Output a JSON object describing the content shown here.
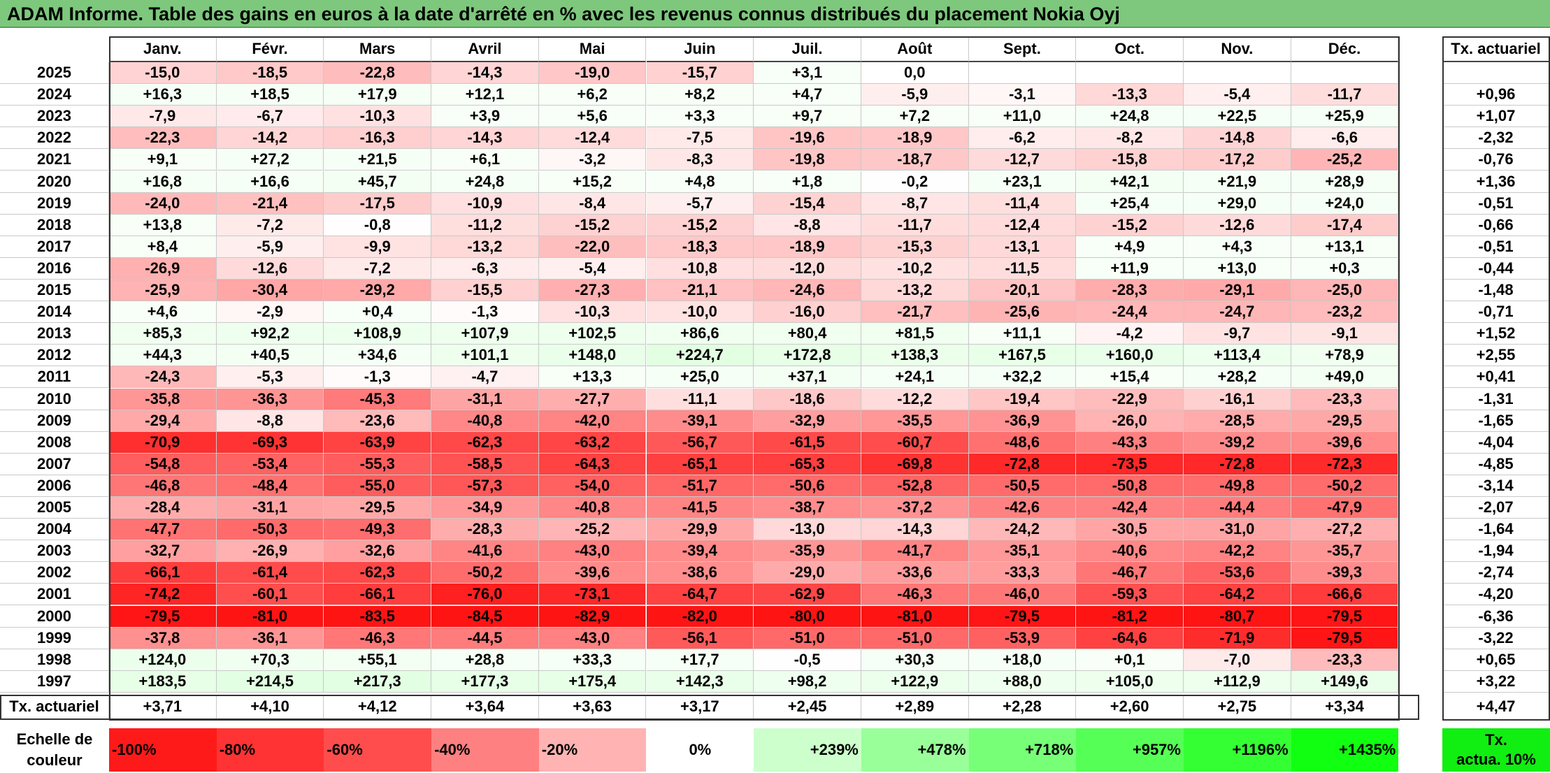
{
  "title": "ADAM Informe. Table des gains en euros à la date d'arrêté en % avec les revenus connus distribués du placement Nokia Oyj",
  "months": [
    "Janv.",
    "Févr.",
    "Mars",
    "Avril",
    "Mai",
    "Juin",
    "Juil.",
    "Août",
    "Sept.",
    "Oct.",
    "Nov.",
    "Déc."
  ],
  "rate_header": "Tx. actuariel",
  "rows": [
    {
      "year": "2025",
      "values": [
        "-15,0",
        "-18,5",
        "-22,8",
        "-14,3",
        "-19,0",
        "-15,7",
        "+3,1",
        "0,0",
        "",
        "",
        "",
        ""
      ],
      "rate": ""
    },
    {
      "year": "2024",
      "values": [
        "+16,3",
        "+18,5",
        "+17,9",
        "+12,1",
        "+6,2",
        "+8,2",
        "+4,7",
        "-5,9",
        "-3,1",
        "-13,3",
        "-5,4",
        "-11,7"
      ],
      "rate": "+0,96"
    },
    {
      "year": "2023",
      "values": [
        "-7,9",
        "-6,7",
        "-10,3",
        "+3,9",
        "+5,6",
        "+3,3",
        "+9,7",
        "+7,2",
        "+11,0",
        "+24,8",
        "+22,5",
        "+25,9"
      ],
      "rate": "+1,07"
    },
    {
      "year": "2022",
      "values": [
        "-22,3",
        "-14,2",
        "-16,3",
        "-14,3",
        "-12,4",
        "-7,5",
        "-19,6",
        "-18,9",
        "-6,2",
        "-8,2",
        "-14,8",
        "-6,6"
      ],
      "rate": "-2,32"
    },
    {
      "year": "2021",
      "values": [
        "+9,1",
        "+27,2",
        "+21,5",
        "+6,1",
        "-3,2",
        "-8,3",
        "-19,8",
        "-18,7",
        "-12,7",
        "-15,8",
        "-17,2",
        "-25,2"
      ],
      "rate": "-0,76"
    },
    {
      "year": "2020",
      "values": [
        "+16,8",
        "+16,6",
        "+45,7",
        "+24,8",
        "+15,2",
        "+4,8",
        "+1,8",
        "-0,2",
        "+23,1",
        "+42,1",
        "+21,9",
        "+28,9"
      ],
      "rate": "+1,36"
    },
    {
      "year": "2019",
      "values": [
        "-24,0",
        "-21,4",
        "-17,5",
        "-10,9",
        "-8,4",
        "-5,7",
        "-15,4",
        "-8,7",
        "-11,4",
        "+25,4",
        "+29,0",
        "+24,0"
      ],
      "rate": "-0,51"
    },
    {
      "year": "2018",
      "values": [
        "+13,8",
        "-7,2",
        "-0,8",
        "-11,2",
        "-15,2",
        "-15,2",
        "-8,8",
        "-11,7",
        "-12,4",
        "-15,2",
        "-12,6",
        "-17,4"
      ],
      "rate": "-0,66"
    },
    {
      "year": "2017",
      "values": [
        "+8,4",
        "-5,9",
        "-9,9",
        "-13,2",
        "-22,0",
        "-18,3",
        "-18,9",
        "-15,3",
        "-13,1",
        "+4,9",
        "+4,3",
        "+13,1"
      ],
      "rate": "-0,51"
    },
    {
      "year": "2016",
      "values": [
        "-26,9",
        "-12,6",
        "-7,2",
        "-6,3",
        "-5,4",
        "-10,8",
        "-12,0",
        "-10,2",
        "-11,5",
        "+11,9",
        "+13,0",
        "+0,3"
      ],
      "rate": "-0,44"
    },
    {
      "year": "2015",
      "values": [
        "-25,9",
        "-30,4",
        "-29,2",
        "-15,5",
        "-27,3",
        "-21,1",
        "-24,6",
        "-13,2",
        "-20,1",
        "-28,3",
        "-29,1",
        "-25,0"
      ],
      "rate": "-1,48"
    },
    {
      "year": "2014",
      "values": [
        "+4,6",
        "-2,9",
        "+0,4",
        "-1,3",
        "-10,3",
        "-10,0",
        "-16,0",
        "-21,7",
        "-25,6",
        "-24,4",
        "-24,7",
        "-23,2"
      ],
      "rate": "-0,71"
    },
    {
      "year": "2013",
      "values": [
        "+85,3",
        "+92,2",
        "+108,9",
        "+107,9",
        "+102,5",
        "+86,6",
        "+80,4",
        "+81,5",
        "+11,1",
        "-4,2",
        "-9,7",
        "-9,1"
      ],
      "rate": "+1,52"
    },
    {
      "year": "2012",
      "values": [
        "+44,3",
        "+40,5",
        "+34,6",
        "+101,1",
        "+148,0",
        "+224,7",
        "+172,8",
        "+138,3",
        "+167,5",
        "+160,0",
        "+113,4",
        "+78,9"
      ],
      "rate": "+2,55"
    },
    {
      "year": "2011",
      "values": [
        "-24,3",
        "-5,3",
        "-1,3",
        "-4,7",
        "+13,3",
        "+25,0",
        "+37,1",
        "+24,1",
        "+32,2",
        "+15,4",
        "+28,2",
        "+49,0"
      ],
      "rate": "+0,41"
    },
    {
      "year": "2010",
      "values": [
        "-35,8",
        "-36,3",
        "-45,3",
        "-31,1",
        "-27,7",
        "-11,1",
        "-18,6",
        "-12,2",
        "-19,4",
        "-22,9",
        "-16,1",
        "-23,3"
      ],
      "rate": "-1,31"
    },
    {
      "year": "2009",
      "values": [
        "-29,4",
        "-8,8",
        "-23,6",
        "-40,8",
        "-42,0",
        "-39,1",
        "-32,9",
        "-35,5",
        "-36,9",
        "-26,0",
        "-28,5",
        "-29,5"
      ],
      "rate": "-1,65"
    },
    {
      "year": "2008",
      "values": [
        "-70,9",
        "-69,3",
        "-63,9",
        "-62,3",
        "-63,2",
        "-56,7",
        "-61,5",
        "-60,7",
        "-48,6",
        "-43,3",
        "-39,2",
        "-39,6"
      ],
      "rate": "-4,04"
    },
    {
      "year": "2007",
      "values": [
        "-54,8",
        "-53,4",
        "-55,3",
        "-58,5",
        "-64,3",
        "-65,1",
        "-65,3",
        "-69,8",
        "-72,8",
        "-73,5",
        "-72,8",
        "-72,3"
      ],
      "rate": "-4,85"
    },
    {
      "year": "2006",
      "values": [
        "-46,8",
        "-48,4",
        "-55,0",
        "-57,3",
        "-54,0",
        "-51,7",
        "-50,6",
        "-52,8",
        "-50,5",
        "-50,8",
        "-49,8",
        "-50,2"
      ],
      "rate": "-3,14"
    },
    {
      "year": "2005",
      "values": [
        "-28,4",
        "-31,1",
        "-29,5",
        "-34,9",
        "-40,8",
        "-41,5",
        "-38,7",
        "-37,2",
        "-42,6",
        "-42,4",
        "-44,4",
        "-47,9"
      ],
      "rate": "-2,07"
    },
    {
      "year": "2004",
      "values": [
        "-47,7",
        "-50,3",
        "-49,3",
        "-28,3",
        "-25,2",
        "-29,9",
        "-13,0",
        "-14,3",
        "-24,2",
        "-30,5",
        "-31,0",
        "-27,2"
      ],
      "rate": "-1,64"
    },
    {
      "year": "2003",
      "values": [
        "-32,7",
        "-26,9",
        "-32,6",
        "-41,6",
        "-43,0",
        "-39,4",
        "-35,9",
        "-41,7",
        "-35,1",
        "-40,6",
        "-42,2",
        "-35,7"
      ],
      "rate": "-1,94"
    },
    {
      "year": "2002",
      "values": [
        "-66,1",
        "-61,4",
        "-62,3",
        "-50,2",
        "-39,6",
        "-38,6",
        "-29,0",
        "-33,6",
        "-33,3",
        "-46,7",
        "-53,6",
        "-39,3"
      ],
      "rate": "-2,74"
    },
    {
      "year": "2001",
      "values": [
        "-74,2",
        "-60,1",
        "-66,1",
        "-76,0",
        "-73,1",
        "-64,7",
        "-62,9",
        "-46,3",
        "-46,0",
        "-59,3",
        "-64,2",
        "-66,6"
      ],
      "rate": "-4,20"
    },
    {
      "year": "2000",
      "values": [
        "-79,5",
        "-81,0",
        "-83,5",
        "-84,5",
        "-82,9",
        "-82,0",
        "-80,0",
        "-81,0",
        "-79,5",
        "-81,2",
        "-80,7",
        "-79,5"
      ],
      "rate": "-6,36"
    },
    {
      "year": "1999",
      "values": [
        "-37,8",
        "-36,1",
        "-46,3",
        "-44,5",
        "-43,0",
        "-56,1",
        "-51,0",
        "-51,0",
        "-53,9",
        "-64,6",
        "-71,9",
        "-79,5"
      ],
      "rate": "-3,22"
    },
    {
      "year": "1998",
      "values": [
        "+124,0",
        "+70,3",
        "+55,1",
        "+28,8",
        "+33,3",
        "+17,7",
        "-0,5",
        "+30,3",
        "+18,0",
        "+0,1",
        "-7,0",
        "-23,3"
      ],
      "rate": "+0,65"
    },
    {
      "year": "1997",
      "values": [
        "+183,5",
        "+214,5",
        "+217,3",
        "+177,3",
        "+175,4",
        "+142,3",
        "+98,2",
        "+122,9",
        "+88,0",
        "+105,0",
        "+112,9",
        "+149,6"
      ],
      "rate": "+3,22"
    }
  ],
  "footer": {
    "label": "Tx. actuariel",
    "values": [
      "+3,71",
      "+4,10",
      "+4,12",
      "+3,64",
      "+3,63",
      "+3,17",
      "+2,45",
      "+2,89",
      "+2,28",
      "+2,60",
      "+2,75",
      "+3,34"
    ],
    "rate": "+4,47"
  },
  "legend": {
    "label_line1": "Echelle de",
    "label_line2": "couleur",
    "items": [
      {
        "text": "-100%",
        "color": "#ff1a1a",
        "align": "left"
      },
      {
        "text": "-80%",
        "color": "#ff3333",
        "align": "left"
      },
      {
        "text": "-60%",
        "color": "#ff4d4d",
        "align": "left"
      },
      {
        "text": "-40%",
        "color": "#ff8080",
        "align": "left"
      },
      {
        "text": "-20%",
        "color": "#ffb3b3",
        "align": "left"
      },
      {
        "text": "0%",
        "color": "#ffffff",
        "align": "center"
      },
      {
        "text": "+239%",
        "color": "#ccffcc",
        "align": "right"
      },
      {
        "text": "+478%",
        "color": "#99ff99",
        "align": "right"
      },
      {
        "text": "+718%",
        "color": "#77ff77",
        "align": "right"
      },
      {
        "text": "+957%",
        "color": "#55ff55",
        "align": "right"
      },
      {
        "text": "+1196%",
        "color": "#33ff33",
        "align": "right"
      },
      {
        "text": "+1435%",
        "color": "#11ff11",
        "align": "right"
      }
    ],
    "rate_line1": "Tx.",
    "rate_line2": "actua. 10%",
    "rate_color": "#11ee11"
  }
}
